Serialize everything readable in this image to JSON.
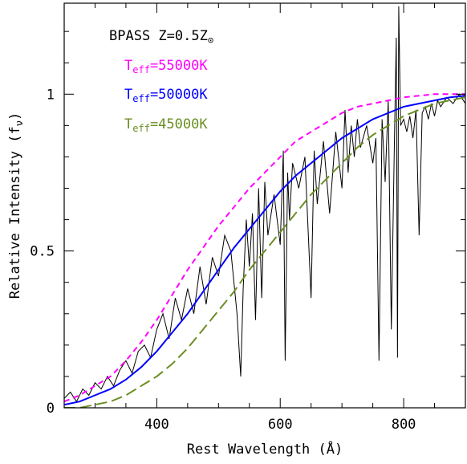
{
  "chart_data": {
    "type": "line",
    "xlabel": "Rest Wavelength (Å)",
    "ylabel": "Relative Intensity (f",
    "ylabel_sub": "ν",
    "ylabel_close": ")",
    "xlim": [
      250,
      900
    ],
    "ylim": [
      0,
      1.29
    ],
    "xticks": [
      {
        "value": 400,
        "label": "400"
      },
      {
        "value": 600,
        "label": "600"
      },
      {
        "value": 800,
        "label": "800"
      }
    ],
    "yticks": [
      {
        "value": 0,
        "label": "0"
      },
      {
        "value": 0.5,
        "label": "0.5"
      },
      {
        "value": 1,
        "label": "1"
      }
    ],
    "grid": false,
    "legend": {
      "placement": "top-left",
      "title": "BPASS Z=0.5Z",
      "title_sub": "⊙",
      "entries": [
        {
          "prefix": "T",
          "sub": "eff",
          "suffix": "=55000K",
          "color": "#ff00ff",
          "style": "dash"
        },
        {
          "prefix": "T",
          "sub": "eff",
          "suffix": "=50000K",
          "color": "#0000ff",
          "style": "solid"
        },
        {
          "prefix": "T",
          "sub": "eff",
          "suffix": "=45000K",
          "color": "#6b8e23",
          "style": "longdash"
        }
      ]
    },
    "series": [
      {
        "color": "#ff00ff",
        "style": "dash",
        "x": [
          250,
          275,
          300,
          325,
          350,
          375,
          400,
          425,
          450,
          475,
          500,
          525,
          550,
          575,
          600,
          625,
          650,
          675,
          700,
          725,
          750,
          775,
          800,
          825,
          850,
          875,
          900
        ],
        "values": [
          0.02,
          0.04,
          0.07,
          0.1,
          0.15,
          0.21,
          0.28,
          0.36,
          0.44,
          0.51,
          0.58,
          0.64,
          0.7,
          0.75,
          0.8,
          0.85,
          0.88,
          0.91,
          0.94,
          0.96,
          0.97,
          0.98,
          0.99,
          0.995,
          1.0,
          1.0,
          1.0
        ]
      },
      {
        "color": "#0000ff",
        "style": "solid",
        "x": [
          250,
          275,
          300,
          325,
          350,
          375,
          400,
          425,
          450,
          475,
          500,
          525,
          550,
          575,
          600,
          625,
          650,
          675,
          700,
          725,
          750,
          775,
          800,
          825,
          850,
          875,
          900
        ],
        "values": [
          0.01,
          0.02,
          0.04,
          0.06,
          0.09,
          0.13,
          0.18,
          0.24,
          0.3,
          0.37,
          0.44,
          0.51,
          0.57,
          0.63,
          0.69,
          0.74,
          0.78,
          0.82,
          0.86,
          0.89,
          0.92,
          0.94,
          0.96,
          0.97,
          0.98,
          0.99,
          0.995
        ]
      },
      {
        "color": "#6b8e23",
        "style": "longdash",
        "x": [
          250,
          275,
          300,
          325,
          350,
          375,
          400,
          425,
          450,
          475,
          500,
          525,
          550,
          575,
          600,
          625,
          650,
          675,
          700,
          725,
          750,
          775,
          800,
          825,
          850,
          875,
          900
        ],
        "values": [
          0.0,
          0.0,
          0.01,
          0.02,
          0.04,
          0.07,
          0.1,
          0.14,
          0.19,
          0.25,
          0.31,
          0.37,
          0.44,
          0.5,
          0.56,
          0.62,
          0.68,
          0.73,
          0.78,
          0.83,
          0.87,
          0.9,
          0.93,
          0.95,
          0.97,
          0.98,
          0.99
        ]
      },
      {
        "color": "#000000",
        "style": "spectrum",
        "x": [
          250,
          260,
          270,
          280,
          290,
          300,
          310,
          320,
          330,
          340,
          350,
          360,
          370,
          380,
          390,
          400,
          410,
          420,
          430,
          440,
          450,
          460,
          470,
          480,
          490,
          500,
          510,
          520,
          530,
          536,
          540,
          545,
          550,
          555,
          560,
          565,
          570,
          575,
          580,
          590,
          600,
          605,
          608,
          612,
          615,
          620,
          630,
          640,
          650,
          655,
          660,
          670,
          680,
          690,
          700,
          705,
          710,
          715,
          720,
          725,
          730,
          740,
          750,
          755,
          760,
          765,
          770,
          775,
          780,
          785,
          788,
          790,
          792,
          795,
          800,
          805,
          810,
          815,
          820,
          825,
          830,
          835,
          840,
          845,
          850,
          855,
          860,
          870,
          880,
          890,
          900
        ],
        "values": [
          0.03,
          0.05,
          0.02,
          0.06,
          0.04,
          0.08,
          0.06,
          0.1,
          0.07,
          0.12,
          0.15,
          0.11,
          0.18,
          0.2,
          0.16,
          0.25,
          0.3,
          0.22,
          0.35,
          0.28,
          0.38,
          0.3,
          0.45,
          0.33,
          0.48,
          0.42,
          0.55,
          0.5,
          0.3,
          0.1,
          0.38,
          0.6,
          0.45,
          0.62,
          0.28,
          0.7,
          0.35,
          0.72,
          0.55,
          0.68,
          0.52,
          0.82,
          0.15,
          0.75,
          0.6,
          0.78,
          0.7,
          0.8,
          0.35,
          0.82,
          0.65,
          0.85,
          0.62,
          0.88,
          0.7,
          0.95,
          0.75,
          0.9,
          0.8,
          0.92,
          0.83,
          0.9,
          0.78,
          0.86,
          0.15,
          0.92,
          0.72,
          0.98,
          0.25,
          0.85,
          1.18,
          0.16,
          1.28,
          0.9,
          0.92,
          0.88,
          0.93,
          0.86,
          0.95,
          0.55,
          0.94,
          0.96,
          0.92,
          0.97,
          0.93,
          0.98,
          0.96,
          0.99,
          0.97,
          1.0,
          0.97
        ]
      }
    ]
  }
}
